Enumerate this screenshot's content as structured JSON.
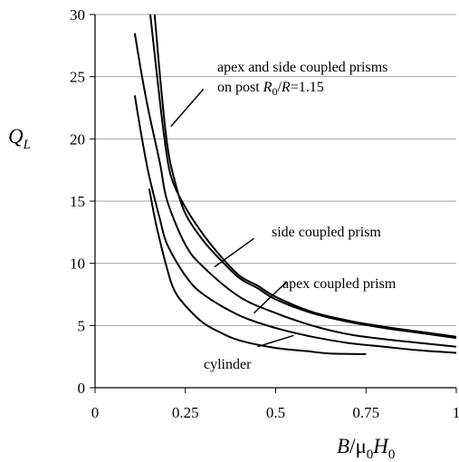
{
  "chart_data": {
    "type": "line",
    "xlabel": {
      "main": "B",
      "mid": "/μ",
      "sub1": "0",
      "main2": "H",
      "sub2": "0"
    },
    "ylabel": {
      "main": "Q",
      "sub": "L"
    },
    "xlim": [
      0,
      1
    ],
    "ylim": [
      0,
      30
    ],
    "x_ticks": [
      "0",
      "0.25",
      "0.5",
      "0.75",
      "1"
    ],
    "y_ticks": [
      "0",
      "5",
      "10",
      "15",
      "20",
      "25",
      "30"
    ],
    "grid": "horizontal",
    "series": [
      {
        "name": "cylinder",
        "points": [
          [
            0.15,
            16
          ],
          [
            0.17,
            13
          ],
          [
            0.2,
            9.5
          ],
          [
            0.22,
            7.8
          ],
          [
            0.25,
            6.6
          ],
          [
            0.3,
            5.2
          ],
          [
            0.35,
            4.4
          ],
          [
            0.4,
            3.8
          ],
          [
            0.5,
            3.2
          ],
          [
            0.6,
            2.9
          ],
          [
            0.65,
            2.75
          ],
          [
            0.75,
            2.7
          ]
        ]
      },
      {
        "name": "apex coupled prism",
        "points": [
          [
            0.11,
            23.5
          ],
          [
            0.13,
            20
          ],
          [
            0.15,
            17
          ],
          [
            0.18,
            13.5
          ],
          [
            0.2,
            11.5
          ],
          [
            0.25,
            9
          ],
          [
            0.3,
            7.5
          ],
          [
            0.4,
            5.8
          ],
          [
            0.5,
            4.8
          ],
          [
            0.6,
            4.1
          ],
          [
            0.7,
            3.6
          ],
          [
            0.8,
            3.3
          ],
          [
            0.9,
            3.0
          ],
          [
            1.0,
            2.8
          ]
        ]
      },
      {
        "name": "side coupled prism",
        "points": [
          [
            0.11,
            28.5
          ],
          [
            0.13,
            25
          ],
          [
            0.15,
            22
          ],
          [
            0.18,
            18
          ],
          [
            0.2,
            15
          ],
          [
            0.25,
            11.5
          ],
          [
            0.3,
            9.7
          ],
          [
            0.4,
            7.3
          ],
          [
            0.5,
            6.0
          ],
          [
            0.6,
            5.0
          ],
          [
            0.7,
            4.3
          ],
          [
            0.8,
            3.9
          ],
          [
            0.9,
            3.6
          ],
          [
            1.0,
            3.3
          ]
        ]
      },
      {
        "name": "apex and side coupled prisms on post R0/R=1.15 (upper)",
        "points": [
          [
            0.153,
            30
          ],
          [
            0.17,
            25.5
          ],
          [
            0.19,
            20.5
          ],
          [
            0.21,
            17
          ],
          [
            0.25,
            14.5
          ],
          [
            0.3,
            12.3
          ],
          [
            0.35,
            10.5
          ],
          [
            0.4,
            9.0
          ],
          [
            0.45,
            8.2
          ],
          [
            0.5,
            7.3
          ],
          [
            0.6,
            6.1
          ],
          [
            0.7,
            5.4
          ],
          [
            0.8,
            4.9
          ],
          [
            0.9,
            4.5
          ],
          [
            1.0,
            4.1
          ]
        ]
      },
      {
        "name": "apex and side coupled prisms on post R0/R=1.15 (lower)",
        "points": [
          [
            0.165,
            30
          ],
          [
            0.18,
            25
          ],
          [
            0.2,
            19.5
          ],
          [
            0.22,
            16.7
          ],
          [
            0.25,
            14.0
          ],
          [
            0.3,
            11.8
          ],
          [
            0.35,
            10.2
          ],
          [
            0.4,
            8.8
          ],
          [
            0.45,
            8.0
          ],
          [
            0.5,
            7.1
          ],
          [
            0.6,
            6.0
          ],
          [
            0.7,
            5.3
          ],
          [
            0.8,
            4.8
          ],
          [
            0.9,
            4.4
          ],
          [
            1.0,
            4.0
          ]
        ]
      }
    ],
    "annotations": [
      {
        "line1": "apex and side coupled prisms",
        "line2a": "on post ",
        "line2b": "R",
        "line2c": "0",
        "line2d": "/",
        "line2e": "R",
        "line2f": "=1.15",
        "leader": [
          [
            0.21,
            21
          ],
          [
            0.3,
            24
          ]
        ]
      },
      {
        "text": "side coupled prism",
        "leader": [
          [
            0.33,
            9.7
          ],
          [
            0.44,
            12
          ]
        ]
      },
      {
        "text": "apex coupled prism",
        "leader": [
          [
            0.44,
            6.0
          ],
          [
            0.53,
            8.5
          ]
        ]
      },
      {
        "text": "cylinder",
        "leader": [
          [
            0.45,
            3.3
          ],
          [
            0.55,
            4.2
          ]
        ]
      }
    ]
  }
}
